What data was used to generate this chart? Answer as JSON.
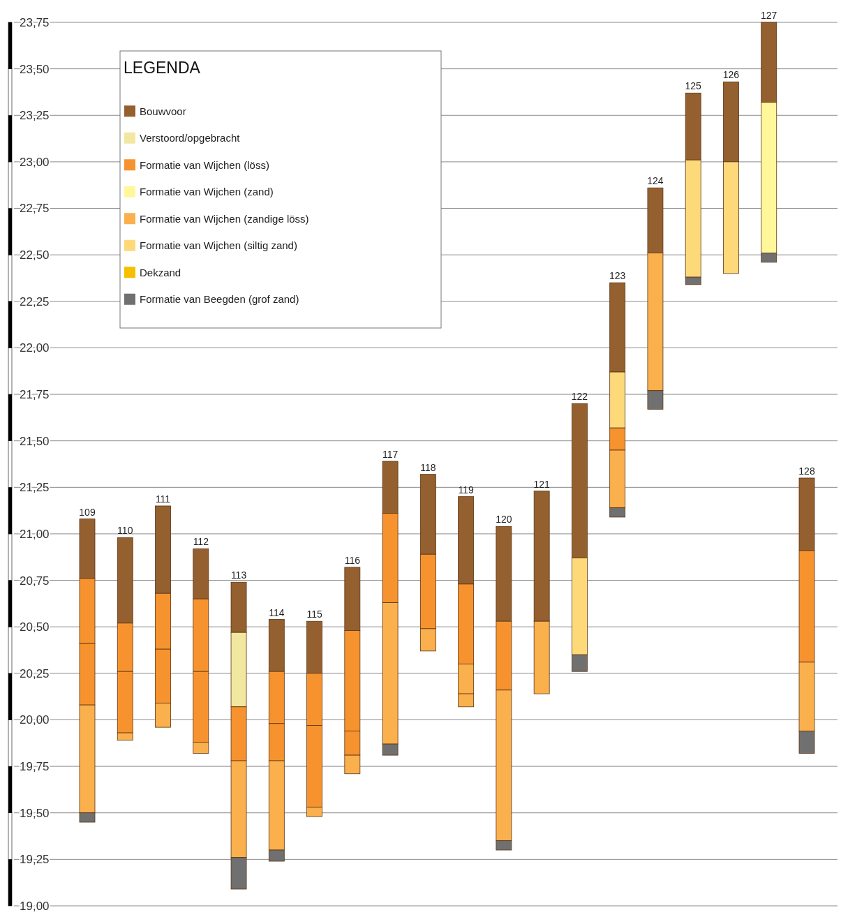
{
  "chart_data": {
    "type": "bar",
    "legend_title": "LEGENDA",
    "legend": "top left",
    "grid": "y",
    "categories": [
      "109",
      "110",
      "111",
      "112",
      "113",
      "114",
      "115",
      "116",
      "117",
      "118",
      "119",
      "120",
      "121",
      "122",
      "123",
      "124",
      "125",
      "126",
      "127",
      "128"
    ],
    "ylim": [
      19.0,
      23.75
    ],
    "yticks": [
      {
        "value": 19.0,
        "label": "19,00"
      },
      {
        "value": 19.25,
        "label": "19,25"
      },
      {
        "value": 19.5,
        "label": "19,50"
      },
      {
        "value": 19.75,
        "label": "19,75"
      },
      {
        "value": 20.0,
        "label": "20,00"
      },
      {
        "value": 20.25,
        "label": "20,25"
      },
      {
        "value": 20.5,
        "label": "20,50"
      },
      {
        "value": 20.75,
        "label": "20,75"
      },
      {
        "value": 21.0,
        "label": "21,00"
      },
      {
        "value": 21.25,
        "label": "21,25"
      },
      {
        "value": 21.5,
        "label": "21,50"
      },
      {
        "value": 21.75,
        "label": "21,75"
      },
      {
        "value": 22.0,
        "label": "22,00"
      },
      {
        "value": 22.25,
        "label": "22,25"
      },
      {
        "value": 22.5,
        "label": "22,50"
      },
      {
        "value": 22.75,
        "label": "22,75"
      },
      {
        "value": 23.0,
        "label": "23,00"
      },
      {
        "value": 23.25,
        "label": "23,25"
      },
      {
        "value": 23.5,
        "label": "23,50"
      },
      {
        "value": 23.75,
        "label": "23,75"
      }
    ],
    "series": [
      {
        "name": "Bouwvoor",
        "color": "#94602f",
        "base": [
          20.76,
          20.52,
          20.68,
          20.65,
          20.47,
          20.26,
          20.25,
          20.48,
          21.11,
          20.89,
          20.73,
          20.53,
          20.53,
          20.87,
          21.87,
          22.51,
          23.01,
          23.0,
          23.32,
          20.91
        ],
        "values": [
          0.32,
          0.46,
          0.47,
          0.27,
          0.27,
          0.28,
          0.28,
          0.34,
          0.28,
          0.43,
          0.47,
          0.51,
          0.7,
          0.83,
          0.48,
          0.35,
          0.36,
          0.43,
          0.43,
          0.39
        ]
      },
      {
        "name": "Verstoord/opgebracht",
        "color": "#f2e7a0",
        "base": [
          null,
          null,
          null,
          null,
          20.07,
          null,
          null,
          null,
          null,
          null,
          null,
          null,
          null,
          null,
          null,
          null,
          null,
          null,
          null,
          null
        ],
        "values": [
          null,
          null,
          null,
          null,
          0.4,
          null,
          null,
          null,
          null,
          null,
          null,
          null,
          null,
          null,
          null,
          null,
          null,
          null,
          null,
          null
        ]
      },
      {
        "name": "Formatie van Wijchen (löss)",
        "color": "#f7932e",
        "base": [
          20.41,
          20.26,
          20.38,
          20.26,
          19.78,
          19.98,
          19.97,
          19.94,
          20.63,
          20.49,
          20.3,
          20.16,
          null,
          null,
          21.45,
          null,
          null,
          null,
          null,
          20.31
        ],
        "values": [
          0.35,
          0.26,
          0.3,
          0.39,
          0.29,
          0.28,
          0.28,
          0.54,
          0.48,
          0.4,
          0.43,
          0.37,
          null,
          null,
          0.12,
          null,
          null,
          null,
          null,
          0.6
        ]
      },
      {
        "color": "#f7932e",
        "base": [
          20.08,
          19.93,
          20.09,
          19.88,
          null,
          19.78,
          19.53,
          19.81,
          null,
          null,
          null,
          null,
          null,
          null,
          null,
          null,
          null,
          null,
          null,
          null
        ],
        "values": [
          0.33,
          0.33,
          0.29,
          0.38,
          null,
          0.2,
          0.44,
          0.13,
          null,
          null,
          null,
          null,
          null,
          null,
          null,
          null,
          null,
          null,
          null,
          null
        ]
      },
      {
        "name": "Formatie van Wijchen (zand)",
        "color": "#fff79a",
        "base": [
          null,
          null,
          null,
          null,
          null,
          null,
          null,
          null,
          null,
          null,
          null,
          null,
          null,
          null,
          null,
          null,
          null,
          null,
          22.51,
          null
        ],
        "values": [
          null,
          null,
          null,
          null,
          null,
          null,
          null,
          null,
          null,
          null,
          null,
          null,
          null,
          null,
          null,
          null,
          null,
          null,
          0.81,
          null
        ]
      },
      {
        "name": "Formatie van Wijchen (zandige löss)",
        "color": "#fbb04e",
        "base": [
          19.5,
          19.89,
          19.96,
          19.82,
          19.26,
          19.3,
          19.48,
          19.71,
          19.87,
          20.37,
          20.14,
          19.35,
          20.14,
          null,
          21.14,
          21.77,
          null,
          null,
          null,
          19.94
        ],
        "values": [
          0.58,
          0.04,
          0.13,
          0.06,
          0.52,
          0.48,
          0.05,
          0.1,
          0.76,
          0.12,
          0.16,
          0.81,
          0.39,
          null,
          0.31,
          0.74,
          null,
          null,
          null,
          0.37
        ]
      },
      {
        "color": "#fbb04e",
        "base": [
          null,
          null,
          null,
          null,
          null,
          null,
          null,
          null,
          null,
          null,
          20.07,
          null,
          null,
          null,
          null,
          null,
          null,
          null,
          null,
          null
        ],
        "values": [
          null,
          null,
          null,
          null,
          null,
          null,
          null,
          null,
          null,
          null,
          0.07,
          null,
          null,
          null,
          null,
          null,
          null,
          null,
          null,
          null
        ]
      },
      {
        "name": "Formatie van Wijchen (siltig zand)",
        "color": "#fdd97a",
        "base": [
          null,
          null,
          null,
          null,
          null,
          null,
          null,
          null,
          null,
          null,
          null,
          null,
          null,
          20.35,
          21.57,
          null,
          22.38,
          22.4,
          null,
          null
        ],
        "values": [
          null,
          null,
          null,
          null,
          null,
          null,
          null,
          null,
          null,
          null,
          null,
          null,
          null,
          0.52,
          0.3,
          null,
          0.63,
          0.6,
          null,
          null
        ]
      },
      {
        "name": "Dekzand",
        "color": "#f5c000",
        "base": [
          null,
          null,
          null,
          null,
          null,
          null,
          null,
          null,
          null,
          null,
          null,
          null,
          null,
          null,
          null,
          null,
          null,
          null,
          null,
          null
        ],
        "values": [
          null,
          null,
          null,
          null,
          null,
          null,
          null,
          null,
          null,
          null,
          null,
          null,
          null,
          null,
          null,
          null,
          null,
          null,
          null,
          null
        ]
      },
      {
        "name": "Formatie van Beegden (grof zand)",
        "color": "#707070",
        "base": [
          19.45,
          null,
          null,
          null,
          19.09,
          19.24,
          null,
          null,
          19.81,
          null,
          null,
          19.3,
          null,
          20.26,
          21.09,
          21.67,
          22.34,
          null,
          22.46,
          19.82
        ],
        "values": [
          0.05,
          null,
          null,
          null,
          0.17,
          0.06,
          null,
          null,
          0.06,
          null,
          null,
          0.05,
          null,
          0.09,
          0.05,
          0.1,
          0.04,
          null,
          0.05,
          0.12
        ]
      }
    ]
  }
}
